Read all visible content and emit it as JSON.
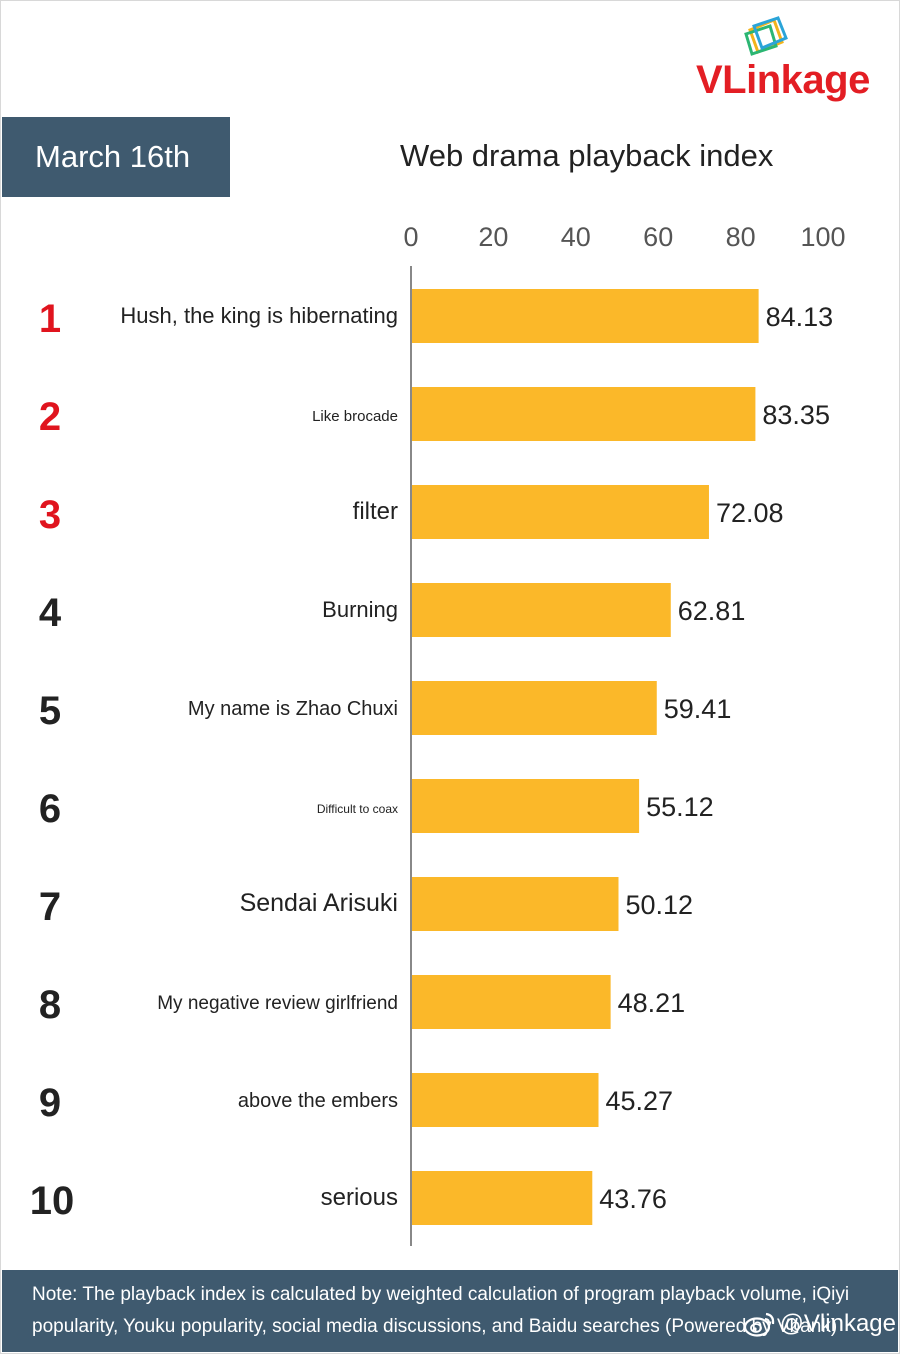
{
  "brand": {
    "logo_text_red": "VL",
    "logo_text_rest": "ink",
    "logo_text_tail": "age"
  },
  "header": {
    "date": "March 16th",
    "title": "Web drama playback index"
  },
  "chart_data": {
    "type": "bar",
    "orientation": "horizontal",
    "title": "Web drama playback index",
    "xlim": [
      0,
      100
    ],
    "xticks": [
      "0",
      "20",
      "40",
      "60",
      "80",
      "100"
    ],
    "ranks": [
      "1",
      "2",
      "3",
      "4",
      "5",
      "6",
      "7",
      "8",
      "9",
      "10"
    ],
    "categories": [
      "Hush, the king is hibernating",
      "Like brocade",
      "filter",
      "Burning",
      "My name is Zhao Chuxi",
      "Difficult to coax",
      "Sendai Arisuki",
      "My negative review girlfriend",
      "above the embers",
      "serious"
    ],
    "values": [
      84.13,
      83.35,
      72.08,
      62.81,
      59.41,
      55.12,
      50.12,
      48.21,
      45.27,
      43.76
    ],
    "value_labels": [
      "84.13",
      "83.35",
      "72.08",
      "62.81",
      "59.41",
      "55.12",
      "50.12",
      "48.21",
      "45.27",
      "43.76"
    ],
    "bar_color": "#fbb829",
    "top_rank_color": "#e0141e",
    "rank_color": "#222222"
  },
  "footer": {
    "note": "Note: The playback index is calculated by weighted calculation of program playback volume, iQiyi popularity, Youku popularity, social media discussions, and Baidu searches (Powered by Vbank)",
    "handle": "@Vlinkage"
  }
}
